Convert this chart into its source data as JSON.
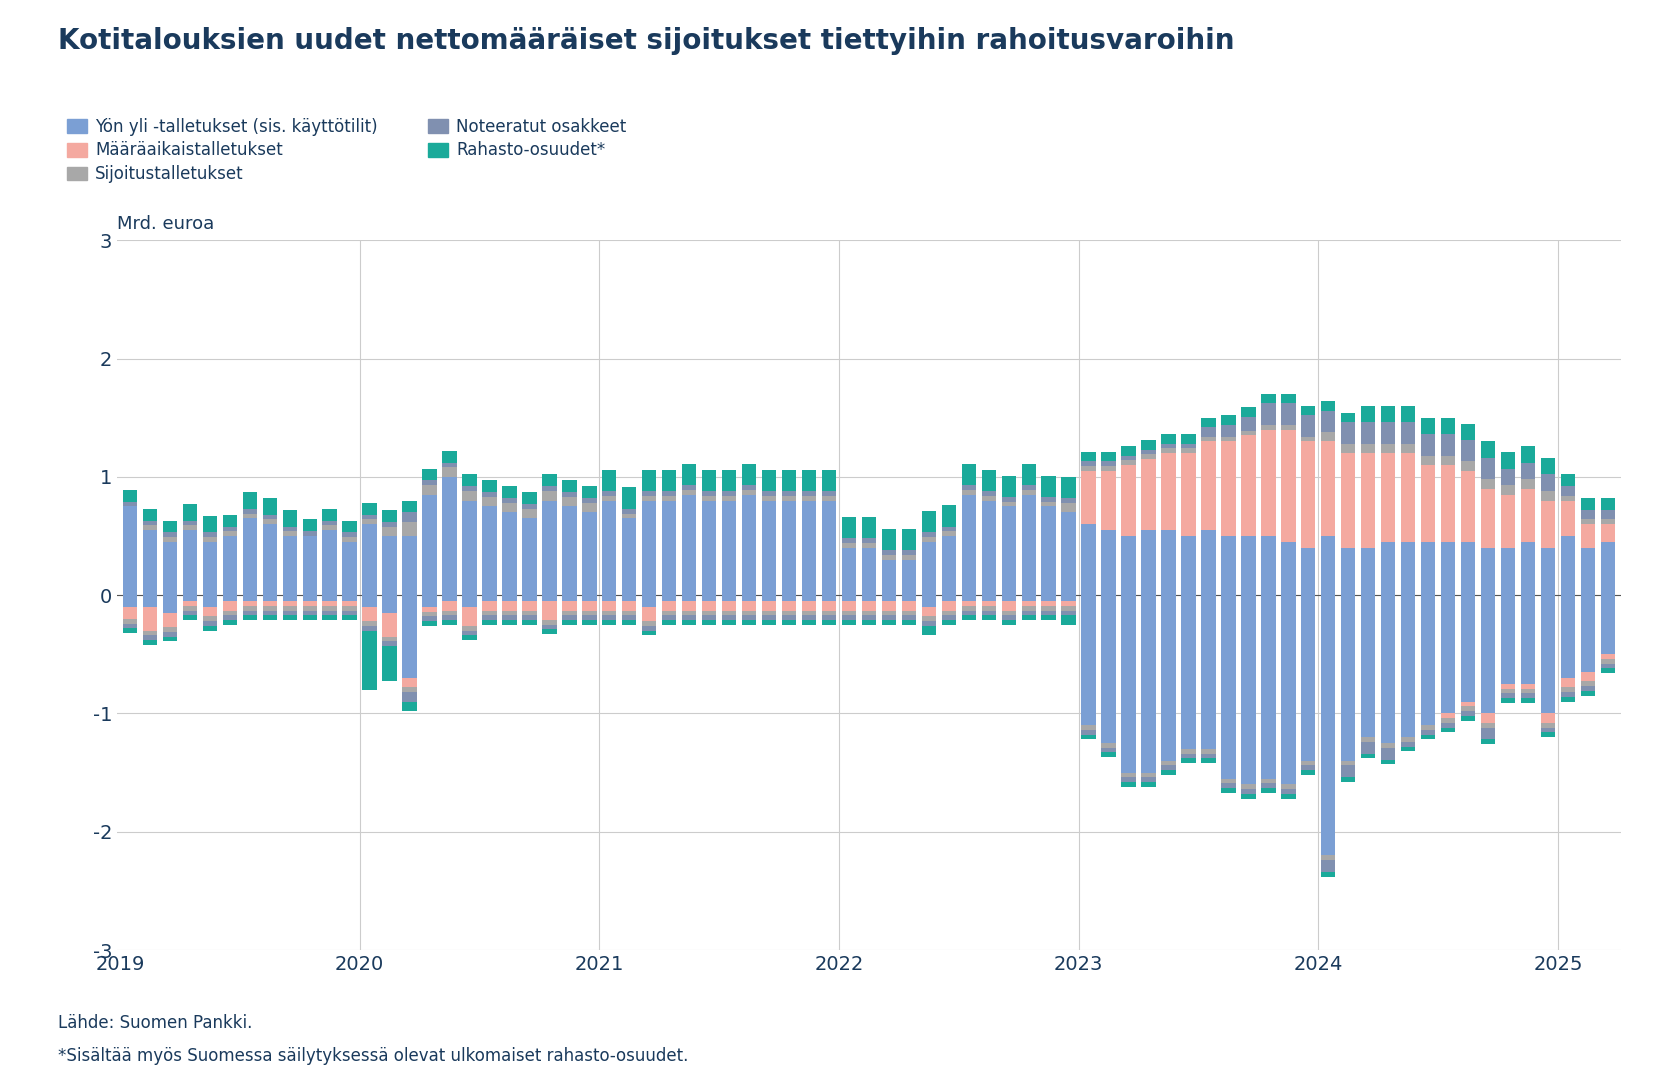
{
  "title": "Kotitalouksien uudet nettomääräiset sijoitukset tiettyihin rahoitusvaroihin",
  "ylabel": "Mrd. euroa",
  "footnote1": "Lähde: Suomen Pankki.",
  "footnote2": "*Sisältää myös Suomessa säilytyksessä olevat ulkomaiset rahasto-osuudet.",
  "title_color": "#1a3a5c",
  "text_color": "#1a3a5c",
  "background_color": "#ffffff",
  "ylim": [
    -3,
    3
  ],
  "yticks": [
    -3,
    -2,
    -1,
    0,
    1,
    2,
    3
  ],
  "series": {
    "overnight": {
      "label": "Yön yli -talletukset (sis. käyttötilit)",
      "color": "#7b9fd4"
    },
    "term": {
      "label": "Määräaikaistalletukset",
      "color": "#f4a9a0"
    },
    "investment": {
      "label": "Sijoitustalletukset",
      "color": "#a8a8a8"
    },
    "listed": {
      "label": "Noteeratut osakkeet",
      "color": "#8090b0"
    },
    "funds": {
      "label": "Rahasto-osuudet*",
      "color": "#1aaa9a"
    }
  },
  "year_positions": [
    0,
    12,
    24,
    36,
    48,
    60,
    72
  ],
  "year_labels": [
    "2019",
    "2020",
    "2021",
    "2022",
    "2023",
    "2024",
    "2025"
  ],
  "data": {
    "overnight_pos": [
      0.75,
      0.55,
      0.45,
      0.55,
      0.45,
      0.5,
      0.65,
      0.6,
      0.5,
      0.5,
      0.55,
      0.45,
      0.6,
      0.5,
      0.5,
      0.85,
      1.0,
      0.8,
      0.75,
      0.7,
      0.65,
      0.8,
      0.75,
      0.7,
      0.8,
      0.65,
      0.8,
      0.8,
      0.85,
      0.8,
      0.8,
      0.85,
      0.8,
      0.8,
      0.8,
      0.8,
      0.4,
      0.4,
      0.3,
      0.3,
      0.45,
      0.5,
      0.85,
      0.8,
      0.75,
      0.85,
      0.75,
      0.7,
      0.6,
      0.55,
      0.5,
      0.55,
      0.55,
      0.5,
      0.55,
      0.5,
      0.5,
      0.5,
      0.45,
      0.4,
      0.5,
      0.4,
      0.4,
      0.45,
      0.45,
      0.45,
      0.45,
      0.45,
      0.4,
      0.4,
      0.45,
      0.4,
      0.5,
      0.4,
      0.45
    ],
    "overnight_neg": [
      -0.1,
      -0.1,
      -0.15,
      -0.05,
      -0.1,
      -0.05,
      -0.05,
      -0.05,
      -0.05,
      -0.05,
      -0.05,
      -0.05,
      -0.1,
      -0.15,
      -0.7,
      -0.1,
      -0.05,
      -0.1,
      -0.05,
      -0.05,
      -0.05,
      -0.05,
      -0.05,
      -0.05,
      -0.05,
      -0.05,
      -0.1,
      -0.05,
      -0.05,
      -0.05,
      -0.05,
      -0.05,
      -0.05,
      -0.05,
      -0.05,
      -0.05,
      -0.05,
      -0.05,
      -0.05,
      -0.05,
      -0.1,
      -0.05,
      -0.05,
      -0.05,
      -0.05,
      -0.05,
      -0.05,
      -0.05,
      -1.1,
      -1.25,
      -1.5,
      -1.5,
      -1.4,
      -1.3,
      -1.3,
      -1.55,
      -1.6,
      -1.55,
      -1.6,
      -1.4,
      -2.2,
      -1.4,
      -1.2,
      -1.25,
      -1.2,
      -1.1,
      -1.0,
      -0.9,
      -1.0,
      -0.75,
      -0.75,
      -1.0,
      -0.7,
      -0.65,
      -0.5
    ],
    "term_pos": [
      0.0,
      0.0,
      0.0,
      0.0,
      0.0,
      0.0,
      0.0,
      0.0,
      0.0,
      0.0,
      0.0,
      0.0,
      0.0,
      0.0,
      0.0,
      0.0,
      0.0,
      0.0,
      0.0,
      0.0,
      0.0,
      0.0,
      0.0,
      0.0,
      0.0,
      0.0,
      0.0,
      0.0,
      0.0,
      0.0,
      0.0,
      0.0,
      0.0,
      0.0,
      0.0,
      0.0,
      0.0,
      0.0,
      0.0,
      0.0,
      0.0,
      0.0,
      0.0,
      0.0,
      0.0,
      0.0,
      0.0,
      0.0,
      0.45,
      0.5,
      0.6,
      0.6,
      0.65,
      0.7,
      0.75,
      0.8,
      0.85,
      0.9,
      0.95,
      0.9,
      0.8,
      0.8,
      0.8,
      0.75,
      0.75,
      0.65,
      0.65,
      0.6,
      0.5,
      0.45,
      0.45,
      0.4,
      0.3,
      0.2,
      0.15
    ],
    "term_neg": [
      -0.1,
      -0.2,
      -0.12,
      -0.04,
      -0.08,
      -0.08,
      -0.04,
      -0.04,
      -0.04,
      -0.04,
      -0.04,
      -0.04,
      -0.12,
      -0.2,
      -0.08,
      -0.04,
      -0.08,
      -0.16,
      -0.08,
      -0.08,
      -0.08,
      -0.16,
      -0.08,
      -0.08,
      -0.08,
      -0.08,
      -0.12,
      -0.08,
      -0.08,
      -0.08,
      -0.08,
      -0.08,
      -0.08,
      -0.08,
      -0.08,
      -0.08,
      -0.08,
      -0.08,
      -0.08,
      -0.08,
      -0.08,
      -0.08,
      -0.04,
      -0.04,
      -0.08,
      -0.04,
      -0.04,
      -0.04,
      0.0,
      0.0,
      0.0,
      0.0,
      0.0,
      0.0,
      0.0,
      0.0,
      0.0,
      0.0,
      0.0,
      0.0,
      0.0,
      0.0,
      0.0,
      0.0,
      0.0,
      0.0,
      -0.04,
      -0.04,
      -0.08,
      -0.04,
      -0.04,
      -0.08,
      -0.08,
      -0.08,
      -0.04
    ],
    "investment_pos": [
      0.0,
      0.04,
      0.04,
      0.04,
      0.04,
      0.04,
      0.04,
      0.04,
      0.04,
      0.0,
      0.04,
      0.04,
      0.04,
      0.08,
      0.12,
      0.08,
      0.08,
      0.08,
      0.08,
      0.08,
      0.08,
      0.08,
      0.08,
      0.08,
      0.04,
      0.04,
      0.04,
      0.04,
      0.04,
      0.04,
      0.04,
      0.04,
      0.04,
      0.04,
      0.04,
      0.04,
      0.04,
      0.04,
      0.04,
      0.04,
      0.04,
      0.04,
      0.04,
      0.04,
      0.04,
      0.04,
      0.04,
      0.08,
      0.04,
      0.04,
      0.04,
      0.04,
      0.04,
      0.04,
      0.04,
      0.04,
      0.04,
      0.04,
      0.04,
      0.04,
      0.08,
      0.08,
      0.08,
      0.08,
      0.08,
      0.08,
      0.08,
      0.08,
      0.08,
      0.08,
      0.08,
      0.08,
      0.04,
      0.04,
      0.04
    ],
    "investment_neg": [
      -0.04,
      -0.04,
      -0.04,
      -0.04,
      -0.04,
      -0.04,
      -0.04,
      -0.04,
      -0.04,
      -0.04,
      -0.04,
      -0.04,
      -0.04,
      -0.04,
      -0.04,
      -0.04,
      -0.04,
      -0.04,
      -0.04,
      -0.04,
      -0.04,
      -0.04,
      -0.04,
      -0.04,
      -0.04,
      -0.04,
      -0.04,
      -0.04,
      -0.04,
      -0.04,
      -0.04,
      -0.04,
      -0.04,
      -0.04,
      -0.04,
      -0.04,
      -0.04,
      -0.04,
      -0.04,
      -0.04,
      -0.04,
      -0.04,
      -0.04,
      -0.04,
      -0.04,
      -0.04,
      -0.04,
      -0.04,
      -0.04,
      -0.04,
      -0.04,
      -0.04,
      -0.04,
      -0.04,
      -0.04,
      -0.04,
      -0.04,
      -0.04,
      -0.04,
      -0.04,
      -0.04,
      -0.04,
      -0.04,
      -0.04,
      -0.04,
      -0.04,
      -0.04,
      -0.04,
      -0.04,
      -0.04,
      -0.04,
      -0.04,
      -0.04,
      -0.04,
      -0.04
    ],
    "listed_pos": [
      0.04,
      0.04,
      0.04,
      0.04,
      0.04,
      0.04,
      0.04,
      0.04,
      0.04,
      0.04,
      0.04,
      0.04,
      0.04,
      0.04,
      0.08,
      0.04,
      0.04,
      0.04,
      0.04,
      0.04,
      0.04,
      0.04,
      0.04,
      0.04,
      0.04,
      0.04,
      0.04,
      0.04,
      0.04,
      0.04,
      0.04,
      0.04,
      0.04,
      0.04,
      0.04,
      0.04,
      0.04,
      0.04,
      0.04,
      0.04,
      0.04,
      0.04,
      0.04,
      0.04,
      0.04,
      0.04,
      0.04,
      0.04,
      0.04,
      0.04,
      0.04,
      0.04,
      0.04,
      0.04,
      0.08,
      0.1,
      0.12,
      0.18,
      0.18,
      0.18,
      0.18,
      0.18,
      0.18,
      0.18,
      0.18,
      0.18,
      0.18,
      0.18,
      0.18,
      0.14,
      0.14,
      0.14,
      0.08,
      0.08,
      0.08
    ],
    "listed_neg": [
      -0.04,
      -0.04,
      -0.04,
      -0.04,
      -0.04,
      -0.04,
      -0.04,
      -0.04,
      -0.04,
      -0.04,
      -0.04,
      -0.04,
      -0.04,
      -0.04,
      -0.08,
      -0.04,
      -0.04,
      -0.04,
      -0.04,
      -0.04,
      -0.04,
      -0.04,
      -0.04,
      -0.04,
      -0.04,
      -0.04,
      -0.04,
      -0.04,
      -0.04,
      -0.04,
      -0.04,
      -0.04,
      -0.04,
      -0.04,
      -0.04,
      -0.04,
      -0.04,
      -0.04,
      -0.04,
      -0.04,
      -0.04,
      -0.04,
      -0.04,
      -0.04,
      -0.04,
      -0.04,
      -0.04,
      -0.04,
      -0.04,
      -0.04,
      -0.04,
      -0.04,
      -0.04,
      -0.04,
      -0.04,
      -0.04,
      -0.04,
      -0.04,
      -0.04,
      -0.04,
      -0.1,
      -0.1,
      -0.1,
      -0.1,
      -0.04,
      -0.04,
      -0.04,
      -0.04,
      -0.1,
      -0.04,
      -0.04,
      -0.04,
      -0.04,
      -0.04,
      -0.04
    ],
    "funds_pos": [
      0.1,
      0.1,
      0.1,
      0.14,
      0.14,
      0.1,
      0.14,
      0.14,
      0.14,
      0.1,
      0.1,
      0.1,
      0.1,
      0.1,
      0.1,
      0.1,
      0.1,
      0.1,
      0.1,
      0.1,
      0.1,
      0.1,
      0.1,
      0.1,
      0.18,
      0.18,
      0.18,
      0.18,
      0.18,
      0.18,
      0.18,
      0.18,
      0.18,
      0.18,
      0.18,
      0.18,
      0.18,
      0.18,
      0.18,
      0.18,
      0.18,
      0.18,
      0.18,
      0.18,
      0.18,
      0.18,
      0.18,
      0.18,
      0.08,
      0.08,
      0.08,
      0.08,
      0.08,
      0.08,
      0.08,
      0.08,
      0.08,
      0.08,
      0.08,
      0.08,
      0.08,
      0.08,
      0.14,
      0.14,
      0.14,
      0.14,
      0.14,
      0.14,
      0.14,
      0.14,
      0.14,
      0.14,
      0.1,
      0.1,
      0.1
    ],
    "funds_neg": [
      -0.04,
      -0.04,
      -0.04,
      -0.04,
      -0.04,
      -0.04,
      -0.04,
      -0.04,
      -0.04,
      -0.04,
      -0.04,
      -0.04,
      -0.5,
      -0.3,
      -0.08,
      -0.04,
      -0.04,
      -0.04,
      -0.04,
      -0.04,
      -0.04,
      -0.04,
      -0.04,
      -0.04,
      -0.04,
      -0.04,
      -0.04,
      -0.04,
      -0.04,
      -0.04,
      -0.04,
      -0.04,
      -0.04,
      -0.04,
      -0.04,
      -0.04,
      -0.04,
      -0.04,
      -0.04,
      -0.04,
      -0.08,
      -0.04,
      -0.04,
      -0.04,
      -0.04,
      -0.04,
      -0.04,
      -0.08,
      -0.04,
      -0.04,
      -0.04,
      -0.04,
      -0.04,
      -0.04,
      -0.04,
      -0.04,
      -0.04,
      -0.04,
      -0.04,
      -0.04,
      -0.04,
      -0.04,
      -0.04,
      -0.04,
      -0.04,
      -0.04,
      -0.04,
      -0.04,
      -0.04,
      -0.04,
      -0.04,
      -0.04,
      -0.04,
      -0.04,
      -0.04
    ]
  }
}
